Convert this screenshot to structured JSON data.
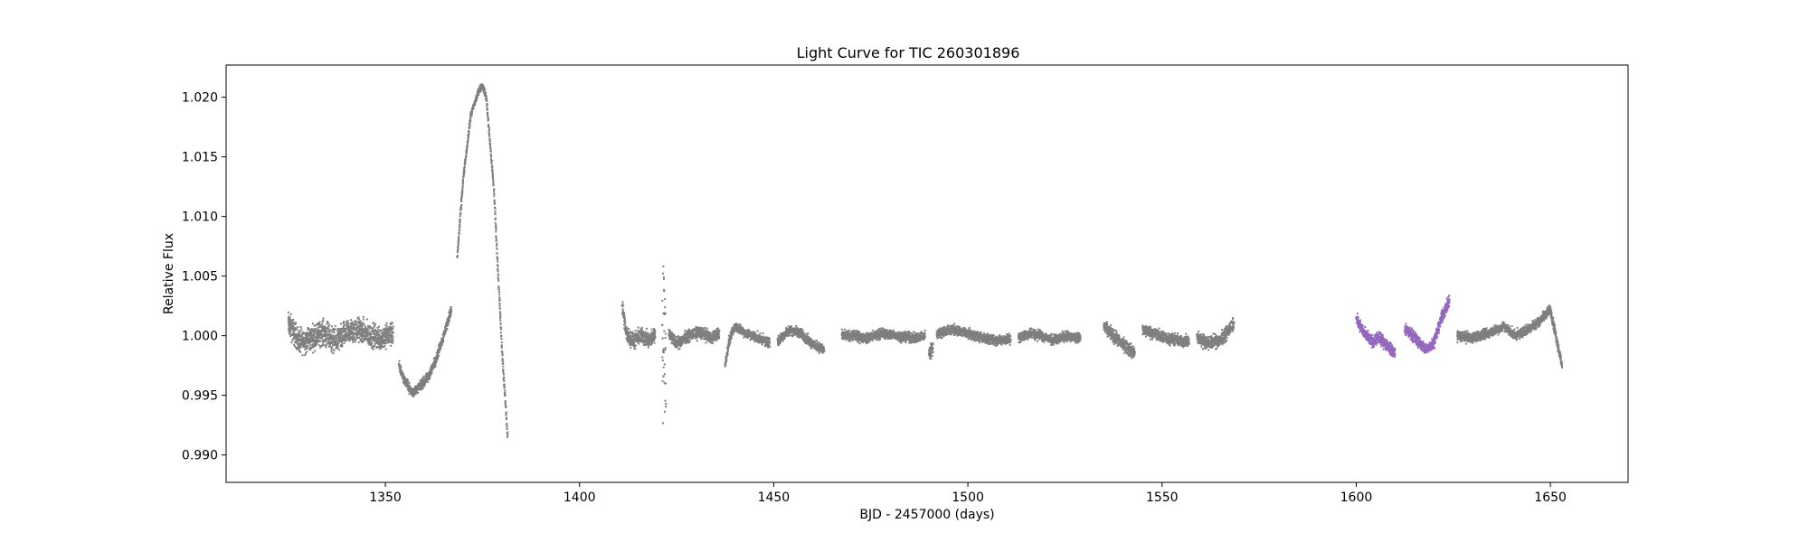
{
  "chart_data": {
    "type": "scatter",
    "title": "Light Curve for TIC 260301896",
    "xlabel": "BJD - 2457000 (days)",
    "ylabel": "Relative Flux",
    "xlim": [
      1309,
      1670
    ],
    "ylim": [
      0.9877,
      1.0227
    ],
    "xticks": [
      1350,
      1400,
      1450,
      1500,
      1550,
      1600,
      1650
    ],
    "yticks": [
      0.99,
      0.995,
      1.0,
      1.005,
      1.01,
      1.015,
      1.02
    ],
    "xtick_labels": [
      "1350",
      "1400",
      "1450",
      "1500",
      "1550",
      "1600",
      "1650"
    ],
    "ytick_labels": [
      "0.990",
      "0.995",
      "1.000",
      "1.005",
      "1.010",
      "1.015",
      "1.020"
    ],
    "grid": false,
    "marker_size": "small",
    "series": [
      {
        "color": "#7f7f7f",
        "segments": [
          {
            "x": [
              1325,
              1328,
              1331,
              1334,
              1337,
              1340,
              1343,
              1346,
              1349,
              1352
            ],
            "y": [
              1.001,
              0.9995,
              0.9998,
              1.0003,
              0.9995,
              1.0002,
              1.0005,
              1.0,
              0.9998,
              1.0002
            ],
            "scatter": 0.0015
          },
          {
            "x": [
              1353.5,
              1355,
              1357,
              1359,
              1361,
              1363,
              1365,
              1367
            ],
            "y": [
              0.9975,
              0.9962,
              0.9952,
              0.9958,
              0.9965,
              0.998,
              1.0,
              1.0022
            ],
            "scatter": 0.0006
          },
          {
            "x": [
              1368.5,
              1370,
              1372,
              1374,
              1375,
              1376,
              1378,
              1380,
              1381.5
            ],
            "y": [
              1.0065,
              1.013,
              1.0185,
              1.0205,
              1.021,
              1.02,
              1.012,
              0.999,
              0.9915
            ],
            "scatter": 0.0004
          },
          {
            "x": [
              1411,
              1412,
              1414,
              1416,
              1418,
              1419.5
            ],
            "y": [
              1.0025,
              1.0002,
              0.9995,
              1.0001,
              0.9995,
              1.0002
            ],
            "scatter": 0.001
          },
          {
            "x": [
              1421.3,
              1421.6,
              1421.9,
              1422.2
            ],
            "y": [
              1.0,
              1.0,
              1.0,
              1.0
            ],
            "scatter": 0.0085
          },
          {
            "x": [
              1423,
              1425,
              1428,
              1431,
              1434,
              1436
            ],
            "y": [
              1.0002,
              0.9993,
              1.0,
              1.0003,
              0.9998,
              1.0002
            ],
            "scatter": 0.0007
          },
          {
            "x": [
              1437.5,
              1438.5,
              1440,
              1443,
              1446,
              1449
            ],
            "y": [
              0.9975,
              0.9995,
              1.0008,
              1.0002,
              0.9998,
              0.9994
            ],
            "scatter": 0.0006
          },
          {
            "x": [
              1451,
              1454,
              1457,
              1460,
              1463
            ],
            "y": [
              0.9995,
              1.0005,
              1.0002,
              0.9993,
              0.9988
            ],
            "scatter": 0.0006
          },
          {
            "x": [
              1467.5,
              1470,
              1474,
              1478,
              1482,
              1486,
              1489
            ],
            "y": [
              1.0,
              1.0,
              0.9998,
              1.0002,
              1.0,
              0.9998,
              1.0
            ],
            "scatter": 0.0006
          },
          {
            "x": [
              1490,
              1491
            ],
            "y": [
              0.9985,
              0.999
            ],
            "scatter": 0.001
          },
          {
            "x": [
              1492,
              1496,
              1500,
              1504,
              1508,
              1511
            ],
            "y": [
              1.0002,
              1.0005,
              1.0002,
              0.9998,
              0.9996,
              0.9997
            ],
            "scatter": 0.0006
          },
          {
            "x": [
              1513,
              1516,
              1519,
              1522,
              1525,
              1529
            ],
            "y": [
              0.9998,
              1.0002,
              1.0,
              0.9996,
              1.0,
              0.9998
            ],
            "scatter": 0.0006
          },
          {
            "x": [
              1535,
              1538,
              1541,
              1543
            ],
            "y": [
              1.0008,
              0.9998,
              0.999,
              0.9985
            ],
            "scatter": 0.0008
          },
          {
            "x": [
              1545,
              1548,
              1551,
              1554,
              1557
            ],
            "y": [
              1.0005,
              1.0002,
              0.9998,
              0.9996,
              0.9995
            ],
            "scatter": 0.0007
          },
          {
            "x": [
              1559,
              1562,
              1565,
              1568.5
            ],
            "y": [
              0.9998,
              0.9994,
              0.9996,
              1.001
            ],
            "scatter": 0.0008
          },
          {
            "x": [
              1626,
              1630,
              1634,
              1638,
              1641,
              1644,
              1647,
              1650,
              1653
            ],
            "y": [
              1.0,
              0.9998,
              1.0002,
              1.0008,
              1.0,
              1.0005,
              1.0012,
              1.0022,
              0.9975
            ],
            "scatter": 0.0006
          }
        ]
      },
      {
        "color": "#9467bd",
        "segments": [
          {
            "x": [
              1600,
              1602,
              1604,
              1606,
              1608,
              1610
            ],
            "y": [
              1.0015,
              1.0002,
              0.9995,
              0.9998,
              0.9992,
              0.9985
            ],
            "scatter": 0.0007
          },
          {
            "x": [
              1612.5,
              1614,
              1616,
              1618,
              1620,
              1622,
              1624
            ],
            "y": [
              1.0005,
              1.0002,
              0.9995,
              0.9988,
              0.9995,
              1.0015,
              1.003
            ],
            "scatter": 0.0007
          }
        ]
      }
    ]
  }
}
